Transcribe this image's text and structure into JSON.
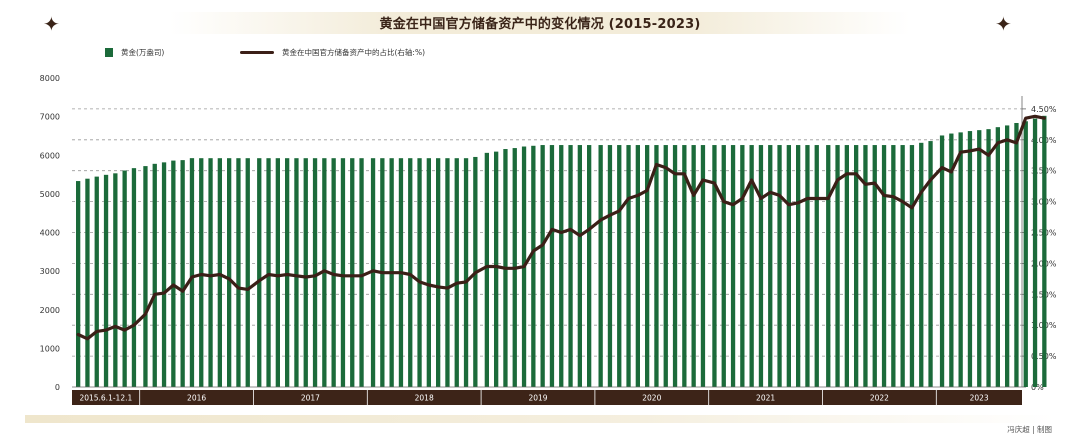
{
  "chart_data": {
    "type": "bar+line",
    "title": "黄金在中国官方储备资产中的变化情况 (2015-2023)",
    "legend": [
      {
        "name": "黄金(万盎司)",
        "kind": "bar",
        "color": "#1b6a3a"
      },
      {
        "name": "黄金在中国官方储备资产中的占比(右轴:%)",
        "kind": "line",
        "color": "#3b1f17"
      }
    ],
    "left_axis": {
      "min": 0,
      "max": 8000,
      "ticks": [
        0,
        1000,
        2000,
        3000,
        4000,
        5000,
        6000,
        7000,
        8000
      ]
    },
    "right_axis": {
      "min": 0,
      "max": 5,
      "ticks": [
        "0%",
        "0.50%",
        "1.00%",
        "1.50%",
        "2.00%",
        "2.50%",
        "3.00%",
        "3.50%",
        "4.00%",
        "4.50%"
      ]
    },
    "periods": [
      {
        "label": "2015.6.1-12.1",
        "months": 7
      },
      {
        "label": "2016",
        "months": 12
      },
      {
        "label": "2017",
        "months": 12
      },
      {
        "label": "2018",
        "months": 12
      },
      {
        "label": "2019",
        "months": 12
      },
      {
        "label": "2020",
        "months": 12
      },
      {
        "label": "2021",
        "months": 12
      },
      {
        "label": "2022",
        "months": 12
      },
      {
        "label": "2023",
        "months": 12
      }
    ],
    "gold_holdings": [
      5332,
      5393,
      5447,
      5493,
      5532,
      5605,
      5666,
      5719,
      5778,
      5816,
      5862,
      5874,
      5925,
      5924,
      5924,
      5924,
      5924,
      5924,
      5924,
      5924,
      5924,
      5924,
      5924,
      5924,
      5924,
      5924,
      5924,
      5924,
      5924,
      5924,
      5924,
      5924,
      5924,
      5924,
      5924,
      5924,
      5924,
      5924,
      5924,
      5924,
      5924,
      5924,
      5956,
      6062,
      6094,
      6161,
      6186,
      6226,
      6245,
      6264,
      6264,
      6264,
      6264,
      6264,
      6264,
      6264,
      6264,
      6264,
      6264,
      6264,
      6264,
      6264,
      6264,
      6264,
      6264,
      6264,
      6264,
      6264,
      6264,
      6264,
      6264,
      6264,
      6264,
      6264,
      6264,
      6264,
      6264,
      6264,
      6264,
      6264,
      6264,
      6264,
      6264,
      6264,
      6264,
      6264,
      6264,
      6264,
      6264,
      6322,
      6367,
      6512,
      6562,
      6592,
      6626,
      6650,
      6676,
      6727,
      6772,
      6835,
      6880,
      6950,
      7021
    ],
    "gold_share_pct": [
      0.85,
      0.78,
      0.9,
      0.92,
      0.98,
      0.92,
      1.0,
      1.18,
      1.5,
      1.52,
      1.65,
      1.55,
      1.78,
      1.82,
      1.8,
      1.82,
      1.75,
      1.6,
      1.58,
      1.72,
      1.82,
      1.8,
      1.82,
      1.8,
      1.78,
      1.8,
      1.88,
      1.82,
      1.8,
      1.8,
      1.8,
      1.88,
      1.85,
      1.85,
      1.85,
      1.82,
      1.7,
      1.65,
      1.62,
      1.6,
      1.68,
      1.7,
      1.85,
      1.95,
      1.95,
      1.92,
      1.92,
      1.95,
      2.2,
      2.3,
      2.55,
      2.5,
      2.55,
      2.45,
      2.55,
      2.7,
      2.78,
      2.85,
      3.05,
      3.1,
      3.18,
      3.6,
      3.55,
      3.45,
      3.45,
      3.1,
      3.35,
      3.3,
      3.0,
      2.95,
      3.05,
      3.35,
      3.05,
      3.15,
      3.1,
      2.95,
      2.98,
      3.05,
      3.05,
      3.05,
      3.35,
      3.45,
      3.45,
      3.28,
      3.3,
      3.1,
      3.08,
      3.0,
      2.9,
      3.15,
      3.35,
      3.55,
      3.48,
      3.8,
      3.82,
      3.85,
      3.75,
      3.95,
      4.0,
      3.95,
      4.35,
      4.38,
      4.35
    ]
  },
  "footer": {
    "credit": "冯庆超 | 制图"
  }
}
